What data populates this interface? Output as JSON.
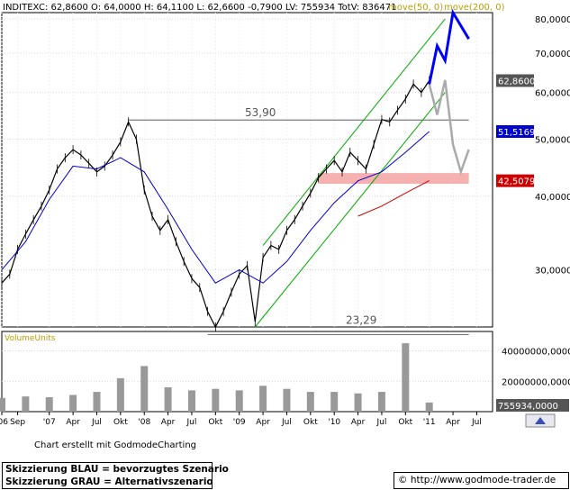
{
  "header": {
    "symbol": "INDITEX",
    "quote": "C: 62,8600  O: 64,0000  H: 64,1100  L: 62,6600  -0,7900  LV: 755934  TotV: 836471",
    "ma_labels": [
      "move(50, 0)",
      "move(200, 0)"
    ]
  },
  "volume_panel": {
    "title": "VolumeUnits"
  },
  "footer": {
    "credit": "Chart erstellt mit GodmodeCharting",
    "legend_blue": "Skizzierung BLAU = bevorzugtes Szenario",
    "legend_gray": "Skizzierung GRAU = Alternativszenario",
    "url": "© http://www.godmode-trader.de"
  },
  "colors": {
    "price": "#000000",
    "ma50": "#0000cc",
    "ma200": "#cc0000",
    "channel": "#00aa00",
    "scenario_blue": "#0000ff",
    "scenario_gray": "#aaaaaa",
    "resistance_zone": "#f5b0b0",
    "volume": "#999999"
  },
  "chart_data": [
    {
      "type": "line",
      "title": "INDITEX",
      "y_scale": "log",
      "ylim": [
        24000,
        82000
      ],
      "y_ticks": [
        30000,
        40000,
        50000,
        60000,
        70000,
        80000
      ],
      "y_tick_labels": [
        "30,0000",
        "40,0000",
        "50,0000",
        "60,0000",
        "70,0000",
        "80,0000"
      ],
      "x_range": [
        "2006-07",
        "2011-09"
      ],
      "x_tick_labels": [
        "'06",
        "Sep",
        "'07",
        "Apr",
        "Jul",
        "Okt",
        "'08",
        "Apr",
        "Jul",
        "Okt",
        "'09",
        "Apr",
        "Jul",
        "Okt",
        "'10",
        "Apr",
        "Jul",
        "Okt",
        "'11",
        "Apr",
        "Jul"
      ],
      "last_value_labels": [
        {
          "series": "Kurs",
          "value": "62,8600"
        },
        {
          "series": "move(50, 0)",
          "value": "51,5169"
        },
        {
          "series": "move(200, 0)",
          "value": "42,5079"
        }
      ],
      "annotations": [
        {
          "label": "53,90",
          "value": 53900
        },
        {
          "label": "23,29",
          "value": 23290
        }
      ],
      "series": [
        {
          "name": "INDITEX",
          "x": [
            "2006-07",
            "2006-08",
            "2006-09",
            "2006-10",
            "2006-11",
            "2006-12",
            "2007-01",
            "2007-02",
            "2007-03",
            "2007-04",
            "2007-05",
            "2007-06",
            "2007-07",
            "2007-08",
            "2007-09",
            "2007-10",
            "2007-11",
            "2007-12",
            "2008-01",
            "2008-02",
            "2008-03",
            "2008-04",
            "2008-05",
            "2008-06",
            "2008-07",
            "2008-08",
            "2008-09",
            "2008-10",
            "2008-11",
            "2008-12",
            "2009-01",
            "2009-02",
            "2009-03",
            "2009-04",
            "2009-05",
            "2009-06",
            "2009-07",
            "2009-08",
            "2009-09",
            "2009-10",
            "2009-11",
            "2009-12",
            "2010-01",
            "2010-02",
            "2010-03",
            "2010-04",
            "2010-05",
            "2010-06",
            "2010-07",
            "2010-08",
            "2010-09",
            "2010-10",
            "2010-11",
            "2010-12",
            "2011-01"
          ],
          "values": [
            28500,
            29500,
            32500,
            34500,
            36500,
            38500,
            41000,
            44500,
            46500,
            48000,
            47000,
            45500,
            44000,
            45000,
            47000,
            49500,
            53500,
            50000,
            41000,
            37000,
            35000,
            36500,
            33500,
            31000,
            29000,
            28000,
            25500,
            24000,
            25500,
            27500,
            29500,
            30500,
            24500,
            31500,
            33000,
            32500,
            35000,
            36500,
            38500,
            40500,
            43000,
            44500,
            46000,
            44000,
            47500,
            46000,
            44500,
            49000,
            54000,
            53500,
            56000,
            58500,
            62000,
            60000,
            62860
          ]
        },
        {
          "name": "move(50, 0)",
          "x": [
            "2006-07",
            "2006-10",
            "2007-01",
            "2007-04",
            "2007-07",
            "2007-10",
            "2008-01",
            "2008-04",
            "2008-07",
            "2008-10",
            "2009-01",
            "2009-04",
            "2009-07",
            "2009-10",
            "2010-01",
            "2010-04",
            "2010-07",
            "2010-10",
            "2011-01"
          ],
          "values": [
            30000,
            33500,
            39500,
            45000,
            44500,
            46500,
            44000,
            38000,
            32500,
            28500,
            30000,
            28500,
            31000,
            35000,
            39000,
            42500,
            44000,
            47500,
            51517
          ]
        },
        {
          "name": "move(200, 0)",
          "x": [
            "2010-04",
            "2010-07",
            "2010-10",
            "2011-01"
          ],
          "values": [
            37000,
            38500,
            40500,
            42508
          ]
        }
      ],
      "channel": {
        "upper": {
          "x": [
            "2009-04",
            "2011-03"
          ],
          "values": [
            33000,
            80000
          ]
        },
        "lower": {
          "x": [
            "2009-03",
            "2011-03"
          ],
          "values": [
            24000,
            60000
          ]
        }
      },
      "resistance_zone": {
        "from": 42000,
        "to": 43800,
        "x": [
          "2009-11",
          "2011-06"
        ]
      },
      "support_line_5390": {
        "x": [
          "2007-11",
          "2011-06"
        ],
        "value": 53900
      },
      "support_line_2329": {
        "x": [
          "2008-09",
          "2011-06"
        ],
        "value": 23290
      },
      "scenario_blue": {
        "x": [
          "2011-01",
          "2011-02",
          "2011-03",
          "2011-04",
          "2011-06"
        ],
        "values": [
          62000,
          72000,
          68000,
          82000,
          74000
        ]
      },
      "scenario_gray": {
        "x": [
          "2011-01",
          "2011-02",
          "2011-03",
          "2011-04",
          "2011-05",
          "2011-06"
        ],
        "values": [
          62000,
          55000,
          63000,
          49000,
          44000,
          48000
        ]
      }
    },
    {
      "type": "bar",
      "title": "VolumeUnits",
      "y_ticks": [
        20000000000,
        40000000000
      ],
      "y_tick_labels": [
        "20000000,0000",
        "40000000,0000"
      ],
      "last_value_label": "755934,0000",
      "x": [
        "2006-07",
        "2006-10",
        "2007-01",
        "2007-04",
        "2007-07",
        "2007-10",
        "2008-01",
        "2008-04",
        "2008-07",
        "2008-10",
        "2009-01",
        "2009-04",
        "2009-07",
        "2009-10",
        "2010-01",
        "2010-04",
        "2010-07",
        "2010-10",
        "2011-01"
      ],
      "values": [
        9000000000,
        10000000000,
        9500000000,
        11000000000,
        13000000000,
        22000000000,
        30000000000,
        16000000000,
        14000000000,
        15000000000,
        14000000000,
        17000000000,
        15000000000,
        13000000000,
        13000000000,
        12000000000,
        13000000000,
        45000000000,
        6000000000
      ]
    }
  ]
}
